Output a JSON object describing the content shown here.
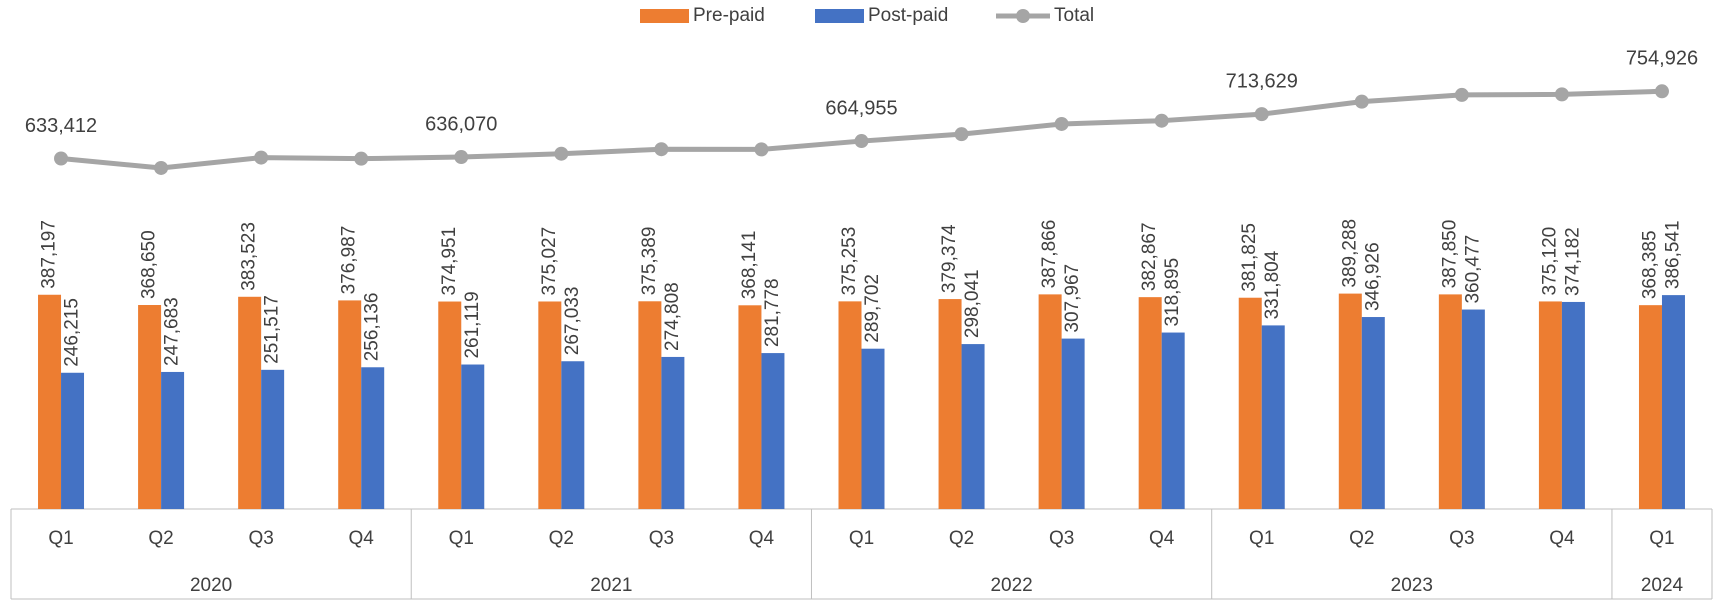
{
  "chart_data": {
    "type": "bar_line",
    "groups": [
      {
        "name": "2020",
        "categories": [
          "Q1",
          "Q2",
          "Q3",
          "Q4"
        ]
      },
      {
        "name": "2021",
        "categories": [
          "Q1",
          "Q2",
          "Q3",
          "Q4"
        ]
      },
      {
        "name": "2022",
        "categories": [
          "Q1",
          "Q2",
          "Q3",
          "Q4"
        ]
      },
      {
        "name": "2023",
        "categories": [
          "Q1",
          "Q2",
          "Q3",
          "Q4"
        ]
      },
      {
        "name": "2024",
        "categories": [
          "Q1"
        ]
      }
    ],
    "series": [
      {
        "name": "Pre-paid",
        "type": "bar",
        "color": "#ed7d31",
        "values": [
          387197,
          368650,
          383523,
          376987,
          374951,
          375027,
          375389,
          368141,
          375253,
          379374,
          387866,
          382867,
          381825,
          389288,
          387850,
          375120,
          368385
        ],
        "value_labels": [
          "387,197",
          "368,650",
          "383,523",
          "376,987",
          "374,951",
          "375,027",
          "375,389",
          "368,141",
          "375,253",
          "379,374",
          "387,866",
          "382,867",
          "381,825",
          "389,288",
          "387,850",
          "375,120",
          "368,385"
        ]
      },
      {
        "name": "Post-paid",
        "type": "bar",
        "color": "#4472c4",
        "values": [
          246215,
          247683,
          251517,
          256136,
          261119,
          267033,
          274808,
          281778,
          289702,
          298041,
          307967,
          318895,
          331804,
          346926,
          360477,
          374182,
          386541
        ],
        "value_labels": [
          "246,215",
          "247,683",
          "251,517",
          "256,136",
          "261,119",
          "267,033",
          "274,808",
          "281,778",
          "289,702",
          "298,041",
          "307,967",
          "318,895",
          "331,804",
          "346,926",
          "360,477",
          "374,182",
          "386,541"
        ]
      },
      {
        "name": "Total",
        "type": "line",
        "color": "#a5a5a5",
        "values": [
          633412,
          616333,
          635040,
          633123,
          636070,
          642060,
          650197,
          649919,
          664955,
          677415,
          695833,
          701762,
          713629,
          736214,
          748327,
          749302,
          754926
        ],
        "value_labels": [
          "633,412",
          null,
          null,
          null,
          "636,070",
          null,
          null,
          null,
          "664,955",
          null,
          null,
          null,
          "713,629",
          null,
          null,
          null,
          "754,926"
        ]
      }
    ],
    "ylim": [
      0,
      900000
    ],
    "legend": "top"
  }
}
